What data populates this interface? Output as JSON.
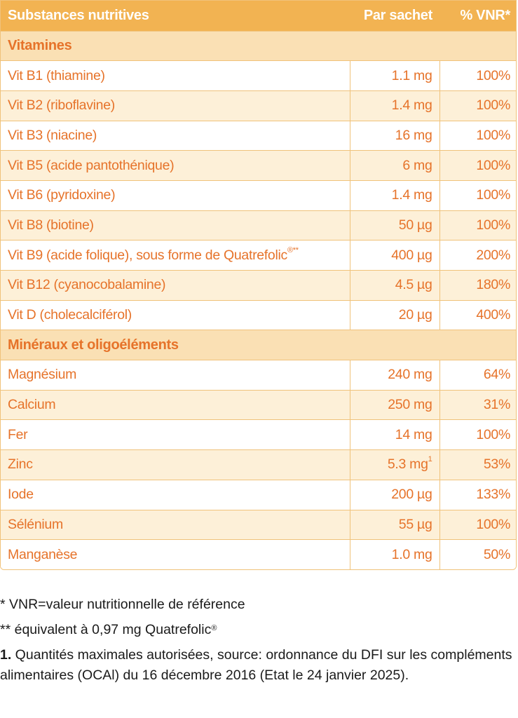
{
  "header": {
    "col1": "Substances nutritives",
    "col2": "Par sachet",
    "col3": "% VNR*"
  },
  "sections": [
    {
      "title": "Vitamines",
      "rows": [
        {
          "name": "Vit B1 (thiamine)",
          "amount": "1.1 mg",
          "vnr": "100%"
        },
        {
          "name": "Vit B2 (riboflavine)",
          "amount": "1.4 mg",
          "vnr": "100%"
        },
        {
          "name": "Vit B3 (niacine)",
          "amount": "16 mg",
          "vnr": "100%"
        },
        {
          "name": "Vit B5 (acide pantothénique)",
          "amount": "6 mg",
          "vnr": "100%"
        },
        {
          "name": "Vit B6 (pyridoxine)",
          "amount": "1.4 mg",
          "vnr": "100%"
        },
        {
          "name": "Vit B8 (biotine)",
          "amount": "50 µg",
          "vnr": "100%"
        },
        {
          "name": "Vit B9 (acide folique), sous forme de Quatrefolic",
          "name_sup": "®**",
          "amount": "400 µg",
          "vnr": "200%"
        },
        {
          "name": "Vit B12 (cyanocobalamine)",
          "amount": "4.5 µg",
          "vnr": "180%"
        },
        {
          "name": "Vit D (cholecalciférol)",
          "amount": "20 µg",
          "vnr": "400%"
        }
      ]
    },
    {
      "title": "Minéraux et oligoéléments",
      "rows": [
        {
          "name": "Magnésium",
          "amount": "240 mg",
          "vnr": "64%"
        },
        {
          "name": "Calcium",
          "amount": "250 mg",
          "vnr": "31%"
        },
        {
          "name": "Fer",
          "amount": "14 mg",
          "vnr": "100%"
        },
        {
          "name": "Zinc",
          "amount": "5.3 mg",
          "amount_sup": "1",
          "vnr": "53%"
        },
        {
          "name": "Iode",
          "amount": "200 µg",
          "vnr": "133%"
        },
        {
          "name": "Sélénium",
          "amount": "55 µg",
          "vnr": "100%"
        },
        {
          "name": "Manganèse",
          "amount": "1.0 mg",
          "vnr": "50%"
        }
      ]
    }
  ],
  "footnotes": {
    "vnr": "* VNR=valeur nutritionnelle de référence",
    "quatrefolic": "** équivalent à 0,97 mg Quatrefolic",
    "quatrefolic_sup": "®",
    "note1_num": "1.",
    "note1_text": "  Quantités maximales autorisées, source: ordonnance du DFI sur les compléments alimentaires (OCAl) du 16 décembre 2016 (Etat le 24 janvier 2025)."
  },
  "colors": {
    "header_bg": "#f2b352",
    "section_bg": "#fae0b4",
    "row_alt_bg": "#fdf0d8",
    "text_orange": "#e6732a",
    "border": "#f0c27a"
  }
}
